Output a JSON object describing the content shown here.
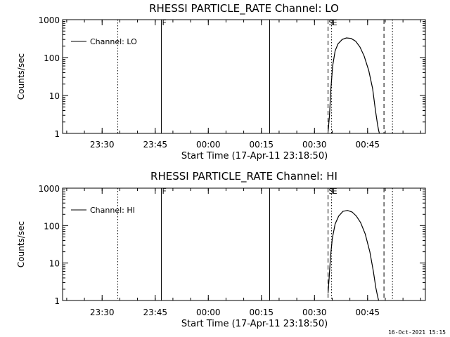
{
  "footer_timestamp": "16-Oct-2021 15:15",
  "chart_data": [
    {
      "type": "line",
      "title": "RHESSI PARTICLE_RATE Channel: LO",
      "xlabel": "Start Time (17-Apr-11 23:18:50)",
      "ylabel": "Counts/sec",
      "yscale": "log",
      "ylim": [
        1,
        1000
      ],
      "yticks": [
        1,
        10,
        100,
        1000
      ],
      "ytick_labels": [
        "1",
        "10",
        "100",
        "1000"
      ],
      "xlim_minutes_from_start": [
        0,
        102.5
      ],
      "xtick_labels": [
        "23:30",
        "23:45",
        "00:00",
        "00:15",
        "00:30",
        "00:45"
      ],
      "xtick_positions_minutes": [
        11.17,
        26.17,
        41.17,
        56.17,
        71.17,
        86.17
      ],
      "legend": {
        "label": "Channel: LO",
        "placement": "top-left"
      },
      "markers": [
        {
          "label": "",
          "style": "dotted",
          "x": 15.6
        },
        {
          "label": "F",
          "style": "solid",
          "x": 27.9
        },
        {
          "label": "",
          "style": "solid",
          "x": 58.5
        },
        {
          "label": "S",
          "style": "dashed",
          "x": 75.0
        },
        {
          "label": "E",
          "style": "dotted",
          "x": 76.0
        },
        {
          "label": "",
          "style": "dashed",
          "x": 90.8
        },
        {
          "label": "",
          "style": "dotted",
          "x": 93.2
        }
      ],
      "series": [
        {
          "name": "Channel: LO",
          "x": [
            75.0,
            75.4,
            75.8,
            76.3,
            77.0,
            77.8,
            79.0,
            80.2,
            81.5,
            82.8,
            84.0,
            85.2,
            86.5,
            87.6,
            88.4,
            89.0,
            89.3,
            89.5
          ],
          "y": [
            1.1,
            3,
            15,
            60,
            150,
            230,
            300,
            330,
            320,
            270,
            190,
            110,
            45,
            15,
            4,
            1.7,
            1.2,
            1.0
          ]
        }
      ]
    },
    {
      "type": "line",
      "title": "RHESSI PARTICLE_RATE Channel: HI",
      "xlabel": "Start Time (17-Apr-11 23:18:50)",
      "ylabel": "Counts/sec",
      "yscale": "log",
      "ylim": [
        1,
        1000
      ],
      "yticks": [
        1,
        10,
        100,
        1000
      ],
      "ytick_labels": [
        "1",
        "10",
        "100",
        "1000"
      ],
      "xlim_minutes_from_start": [
        0,
        102.5
      ],
      "xtick_labels": [
        "23:30",
        "23:45",
        "00:00",
        "00:15",
        "00:30",
        "00:45"
      ],
      "xtick_positions_minutes": [
        11.17,
        26.17,
        41.17,
        56.17,
        71.17,
        86.17
      ],
      "legend": {
        "label": "Channel: HI",
        "placement": "top-left"
      },
      "markers": [
        {
          "label": "",
          "style": "dotted",
          "x": 15.6
        },
        {
          "label": "F",
          "style": "solid",
          "x": 27.9
        },
        {
          "label": "",
          "style": "solid",
          "x": 58.5
        },
        {
          "label": "S",
          "style": "dashed",
          "x": 75.0
        },
        {
          "label": "E",
          "style": "dotted",
          "x": 76.0
        },
        {
          "label": "",
          "style": "dashed",
          "x": 90.8
        },
        {
          "label": "",
          "style": "dotted",
          "x": 93.2
        }
      ],
      "series": [
        {
          "name": "Channel: HI",
          "x": [
            75.0,
            75.3,
            75.7,
            76.2,
            77.0,
            78.0,
            79.2,
            80.5,
            81.8,
            83.0,
            84.2,
            85.5,
            86.8,
            87.8,
            88.5,
            89.0,
            89.3
          ],
          "y": [
            1.6,
            4,
            15,
            45,
            110,
            180,
            240,
            255,
            230,
            180,
            120,
            60,
            20,
            6,
            2.2,
            1.3,
            1.0
          ]
        }
      ]
    }
  ]
}
